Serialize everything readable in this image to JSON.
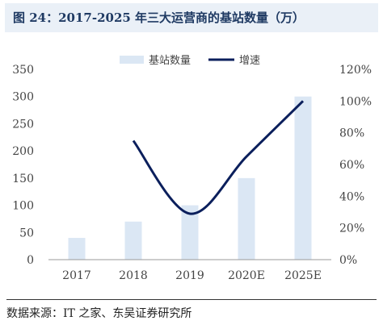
{
  "figure_title": "图 24：2017-2025 年三大运营商的基站数量（万）",
  "source_note": "数据来源：IT 之家、东吴证券研究所",
  "chart_data": {
    "type": "bar",
    "title": "图 24：2017-2025 年三大运营商的基站数量（万）",
    "categories": [
      "2017",
      "2018",
      "2019",
      "2020E",
      "2025E"
    ],
    "series": [
      {
        "name": "基站数量",
        "type": "bar",
        "axis": "left",
        "values": [
          40,
          70,
          100,
          150,
          300
        ],
        "color": "#dbe7f4"
      },
      {
        "name": "增速",
        "type": "line",
        "axis": "right",
        "values": [
          null,
          0.75,
          0.29,
          0.65,
          1.0
        ],
        "color": "#0b1f5c"
      }
    ],
    "y_left": {
      "min": 0,
      "max": 350,
      "ticks": [
        "0",
        "50",
        "100",
        "150",
        "200",
        "250",
        "300",
        "350"
      ]
    },
    "y_right": {
      "min": 0,
      "max": 1.2,
      "ticks": [
        "0%",
        "20%",
        "40%",
        "60%",
        "80%",
        "100%",
        "120%"
      ]
    },
    "legend_position": "top-center",
    "grid": false
  }
}
